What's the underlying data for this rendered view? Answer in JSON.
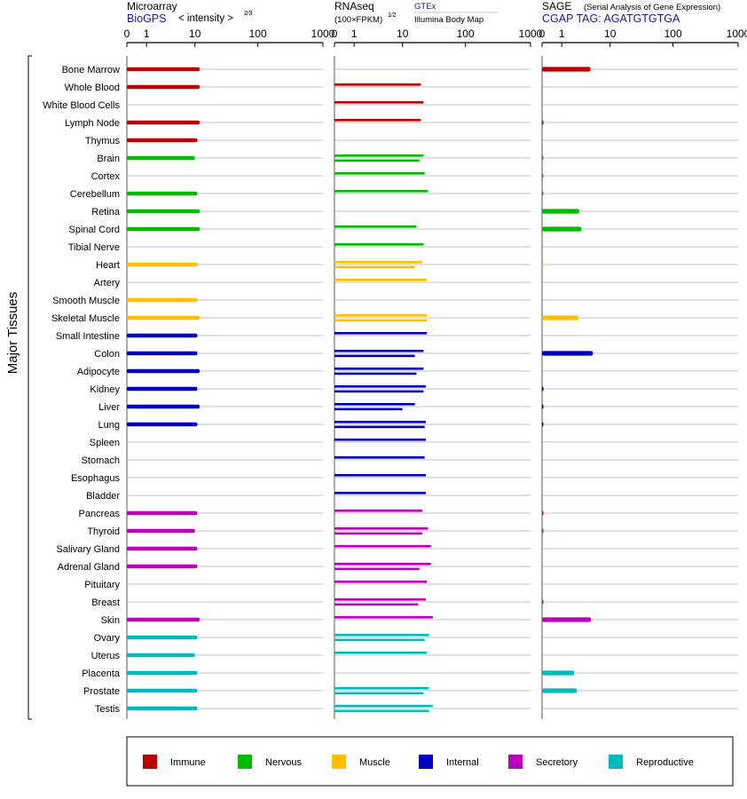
{
  "panels": {
    "microarray": {
      "title": "Microarray",
      "source": "BioGPS",
      "units_prefix": "< intensity >",
      "units_exp": "2⁄3"
    },
    "rnaseq": {
      "title": "RNAseq",
      "units_prefix": "(100×FPKM)",
      "units_exp": "1⁄2",
      "source1": "GTEx",
      "source2": "Illumina Body Map"
    },
    "sage": {
      "title": "SAGE",
      "subtitle": "(Serial Analysis of Gene Expression)",
      "source": "CGAP TAG: AGATGTGTGA"
    }
  },
  "axis_ticks": [
    "0",
    "1",
    "10",
    "100",
    "1000"
  ],
  "group_label": "Major Tissues",
  "categories": {
    "Immune": "#bb0000",
    "Nervous": "#00bb00",
    "Muscle": "#ffbf00",
    "Internal": "#0000bb",
    "Secretory": "#bb00bb",
    "Reproductive": "#00bbbb"
  },
  "legend": [
    {
      "label": "Immune",
      "color": "#bb0000"
    },
    {
      "label": "Nervous",
      "color": "#00bb00"
    },
    {
      "label": "Muscle",
      "color": "#ffbf00"
    },
    {
      "label": "Internal",
      "color": "#0000bb"
    },
    {
      "label": "Secretory",
      "color": "#bb00bb"
    },
    {
      "label": "Reproductive",
      "color": "#00bbbb"
    }
  ],
  "chart_data": {
    "type": "bar",
    "scale": "log(x+1)",
    "xlim": [
      0,
      1000
    ],
    "tissues": [
      {
        "name": "Bone Marrow",
        "cat": "Immune",
        "micro": 12,
        "rna": [],
        "sage": 4.5
      },
      {
        "name": "Whole Blood",
        "cat": "Immune",
        "micro": 12,
        "rna": [
          20
        ],
        "sage": null
      },
      {
        "name": "White Blood Cells",
        "cat": "Immune",
        "micro": null,
        "rna": [
          22
        ],
        "sage": null
      },
      {
        "name": "Lymph Node",
        "cat": "Immune",
        "micro": 12,
        "rna": [
          20
        ],
        "sage": 0.05
      },
      {
        "name": "Thymus",
        "cat": "Immune",
        "micro": 11,
        "rna": [],
        "sage": null
      },
      {
        "name": "Brain",
        "cat": "Nervous",
        "micro": 10,
        "rna": [
          22,
          19
        ],
        "sage": 0.03
      },
      {
        "name": "Cortex",
        "cat": "Nervous",
        "micro": null,
        "rna": [
          23
        ],
        "sage": 0.02
      },
      {
        "name": "Cerebellum",
        "cat": "Nervous",
        "micro": 11,
        "rna": [
          26
        ],
        "sage": 0.02
      },
      {
        "name": "Retina",
        "cat": "Nervous",
        "micro": 12,
        "rna": [],
        "sage": 2.7
      },
      {
        "name": "Spinal Cord",
        "cat": "Nervous",
        "micro": 12,
        "rna": [
          17
        ],
        "sage": 3.0
      },
      {
        "name": "Tibial Nerve",
        "cat": "Nervous",
        "micro": null,
        "rna": [
          22
        ],
        "sage": null
      },
      {
        "name": "Heart",
        "cat": "Muscle",
        "micro": 11,
        "rna": [
          21,
          16
        ],
        "sage": 0.02
      },
      {
        "name": "Artery",
        "cat": "Muscle",
        "micro": null,
        "rna": [
          25
        ],
        "sage": null
      },
      {
        "name": "Smooth Muscle",
        "cat": "Muscle",
        "micro": 11,
        "rna": [],
        "sage": null
      },
      {
        "name": "Skeletal Muscle",
        "cat": "Muscle",
        "micro": 12,
        "rna": [
          25,
          25
        ],
        "sage": 2.6
      },
      {
        "name": "Small Intestine",
        "cat": "Internal",
        "micro": 11,
        "rna": [
          25
        ],
        "sage": null
      },
      {
        "name": "Colon",
        "cat": "Internal",
        "micro": 11,
        "rna": [
          22,
          16
        ],
        "sage": 5.0
      },
      {
        "name": "Adipocyte",
        "cat": "Internal",
        "micro": 12,
        "rna": [
          22,
          17
        ],
        "sage": null
      },
      {
        "name": "Kidney",
        "cat": "Internal",
        "micro": 11,
        "rna": [
          24,
          22
        ],
        "sage": 0.05
      },
      {
        "name": "Liver",
        "cat": "Internal",
        "micro": 12,
        "rna": [
          16,
          10
        ],
        "sage": 0.04
      },
      {
        "name": "Lung",
        "cat": "Internal",
        "micro": 11,
        "rna": [
          24,
          23
        ],
        "sage": 0.04
      },
      {
        "name": "Spleen",
        "cat": "Internal",
        "micro": null,
        "rna": [
          24
        ],
        "sage": null
      },
      {
        "name": "Stomach",
        "cat": "Internal",
        "micro": null,
        "rna": [
          23
        ],
        "sage": null
      },
      {
        "name": "Esophagus",
        "cat": "Internal",
        "micro": null,
        "rna": [
          24
        ],
        "sage": null
      },
      {
        "name": "Bladder",
        "cat": "Internal",
        "micro": null,
        "rna": [
          24
        ],
        "sage": null
      },
      {
        "name": "Pancreas",
        "cat": "Secretory",
        "micro": 11,
        "rna": [
          21
        ],
        "sage": 0.05
      },
      {
        "name": "Thyroid",
        "cat": "Secretory",
        "micro": 10,
        "rna": [
          26,
          21
        ],
        "sage": 0.04
      },
      {
        "name": "Salivary Gland",
        "cat": "Secretory",
        "micro": 11,
        "rna": [
          29
        ],
        "sage": null
      },
      {
        "name": "Adrenal Gland",
        "cat": "Secretory",
        "micro": 11,
        "rna": [
          29,
          19
        ],
        "sage": null
      },
      {
        "name": "Pituitary",
        "cat": "Secretory",
        "micro": null,
        "rna": [
          25
        ],
        "sage": null
      },
      {
        "name": "Breast",
        "cat": "Secretory",
        "micro": null,
        "rna": [
          24,
          18
        ],
        "sage": 0.04
      },
      {
        "name": "Skin",
        "cat": "Secretory",
        "micro": 12,
        "rna": [
          31
        ],
        "sage": 4.6
      },
      {
        "name": "Ovary",
        "cat": "Reproductive",
        "micro": 11,
        "rna": [
          27,
          23
        ],
        "sage": null
      },
      {
        "name": "Uterus",
        "cat": "Reproductive",
        "micro": 10,
        "rna": [
          25
        ],
        "sage": null
      },
      {
        "name": "Placenta",
        "cat": "Reproductive",
        "micro": 11,
        "rna": [],
        "sage": 2.1
      },
      {
        "name": "Prostate",
        "cat": "Reproductive",
        "micro": 11,
        "rna": [
          27,
          22
        ],
        "sage": 2.4
      },
      {
        "name": "Testis",
        "cat": "Reproductive",
        "micro": 11,
        "rna": [
          31,
          27
        ],
        "sage": null
      }
    ]
  }
}
